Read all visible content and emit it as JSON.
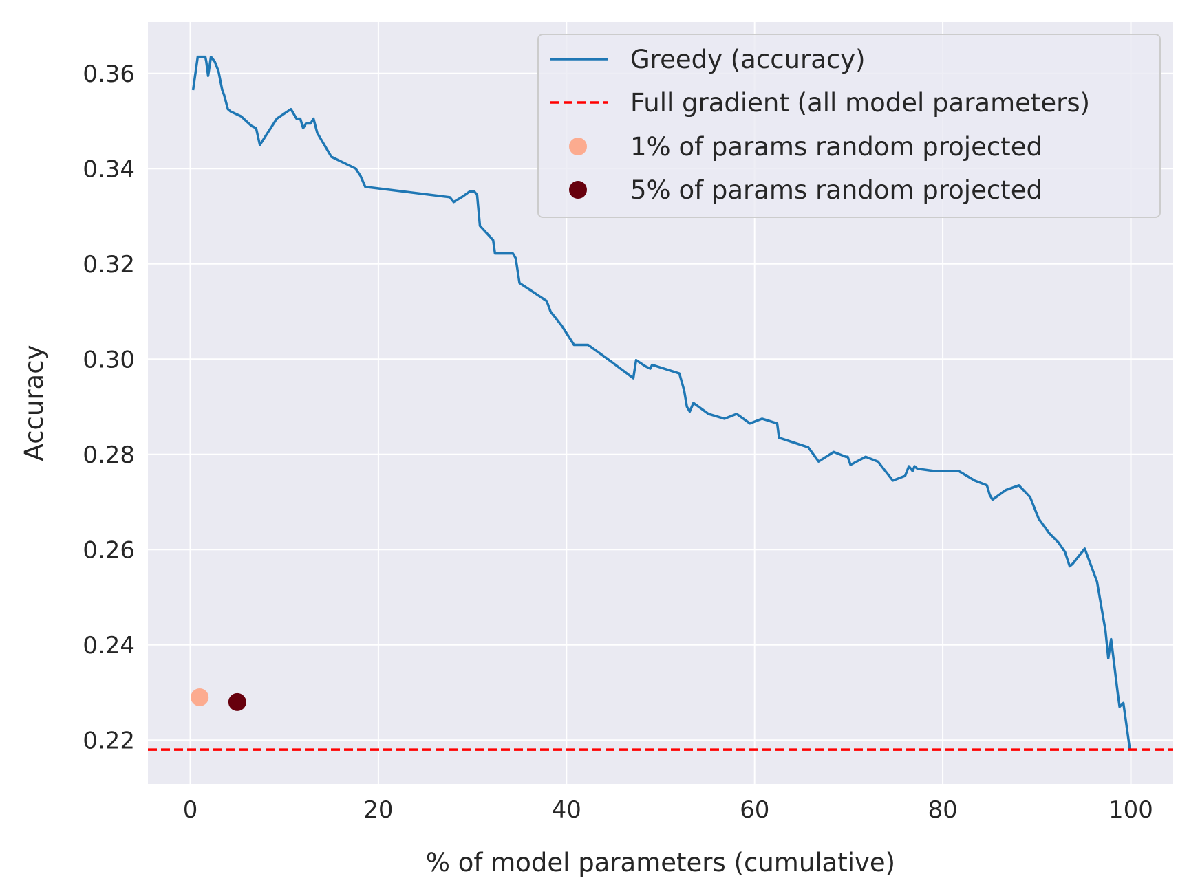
{
  "chart_data": {
    "type": "line",
    "xlabel": "% of model parameters (cumulative)",
    "ylabel": "Accuracy",
    "xlim": [
      -4.5,
      104.5
    ],
    "ylim": [
      0.2108,
      0.3708
    ],
    "xticks": [
      0,
      20,
      40,
      60,
      80,
      100
    ],
    "yticks": [
      0.22,
      0.24,
      0.26,
      0.28,
      0.3,
      0.32,
      0.34,
      0.36
    ],
    "xtick_labels": [
      "0",
      "20",
      "40",
      "60",
      "80",
      "100"
    ],
    "ytick_labels": [
      "0.22",
      "0.24",
      "0.26",
      "0.28",
      "0.30",
      "0.32",
      "0.34",
      "0.36"
    ],
    "grid": true,
    "legend_position": "top-right",
    "series": [
      {
        "name": "Greedy (accuracy)",
        "kind": "line",
        "color": "#1f77b4",
        "x": [
          0.3,
          0.8,
          1.6,
          1.7,
          1.9,
          2.2,
          2.6,
          3.0,
          3.4,
          3.6,
          4.0,
          4.3,
          5.4,
          6.5,
          7.0,
          7.4,
          9.2,
          10.7,
          11.3,
          11.7,
          12.0,
          12.3,
          12.8,
          13.1,
          13.5,
          15.0,
          17.6,
          18.1,
          18.6,
          27.6,
          28.0,
          29.0,
          29.7,
          30.2,
          30.5,
          30.8,
          32.2,
          32.4,
          34.3,
          34.6,
          35.0,
          37.9,
          38.3,
          39.5,
          40.8,
          42.3,
          44.4,
          47.1,
          47.4,
          48.4,
          48.9,
          49.1,
          52.0,
          52.5,
          52.8,
          53.1,
          53.5,
          55.1,
          56.8,
          58.1,
          59.5,
          60.8,
          61.6,
          62.4,
          62.6,
          65.7,
          66.8,
          68.4,
          69.7,
          69.9,
          70.2,
          71.8,
          73.1,
          74.7,
          76.0,
          76.4,
          76.8,
          77.0,
          77.3,
          79.1,
          81.7,
          83.4,
          84.7,
          85.0,
          85.3,
          86.7,
          88.1,
          89.3,
          89.6,
          90.2,
          91.3,
          92.3,
          93.0,
          93.5,
          93.8,
          95.1,
          96.4,
          97.3,
          97.6,
          97.9,
          98.6,
          98.8,
          99.2,
          99.9
        ],
        "y": [
          0.3565,
          0.3635,
          0.3635,
          0.3625,
          0.3595,
          0.3635,
          0.3625,
          0.3605,
          0.3565,
          0.3555,
          0.3525,
          0.352,
          0.351,
          0.349,
          0.3485,
          0.345,
          0.3505,
          0.3525,
          0.3505,
          0.3505,
          0.3485,
          0.3495,
          0.3495,
          0.3505,
          0.3475,
          0.3425,
          0.34,
          0.3385,
          0.3362,
          0.334,
          0.333,
          0.3342,
          0.3352,
          0.3352,
          0.3345,
          0.328,
          0.325,
          0.3222,
          0.3222,
          0.3212,
          0.316,
          0.3122,
          0.31,
          0.307,
          0.303,
          0.303,
          0.3,
          0.296,
          0.2998,
          0.2985,
          0.298,
          0.2988,
          0.297,
          0.2935,
          0.29,
          0.289,
          0.2908,
          0.2885,
          0.2875,
          0.2885,
          0.2865,
          0.2875,
          0.287,
          0.2865,
          0.2835,
          0.2815,
          0.2785,
          0.2805,
          0.2795,
          0.2795,
          0.2778,
          0.2795,
          0.2785,
          0.2745,
          0.2755,
          0.2775,
          0.2765,
          0.2775,
          0.277,
          0.2765,
          0.2765,
          0.2745,
          0.2735,
          0.2715,
          0.2705,
          0.2725,
          0.2735,
          0.271,
          0.2695,
          0.2665,
          0.2635,
          0.2615,
          0.2595,
          0.2565,
          0.257,
          0.2602,
          0.2533,
          0.243,
          0.2372,
          0.2412,
          0.23,
          0.227,
          0.2278,
          0.218
        ]
      },
      {
        "name": "Full gradient (all model parameters)",
        "kind": "hline",
        "color": "#ff0000",
        "y": 0.218
      },
      {
        "name": "1% of params random projected",
        "kind": "scatter",
        "color": "#fcab8f",
        "x": [
          1.0
        ],
        "y": [
          0.229
        ]
      },
      {
        "name": "5% of params random projected",
        "kind": "scatter",
        "color": "#67000d",
        "x": [
          5.0
        ],
        "y": [
          0.228
        ]
      }
    ]
  }
}
